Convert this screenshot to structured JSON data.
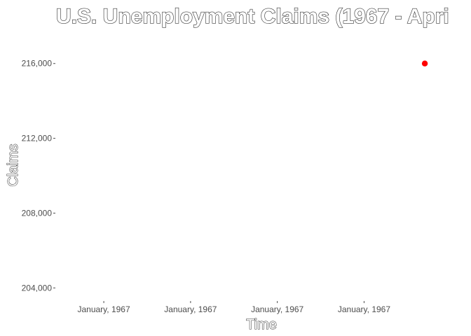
{
  "chart_data": {
    "type": "scatter",
    "title": "U.S. Unemployment Claims (1967 - Apri",
    "xlabel": "Time",
    "ylabel": "Claims",
    "x_tick_labels": [
      "January, 1967",
      "January, 1967",
      "January, 1967",
      "January, 1967"
    ],
    "y_ticks": [
      204000,
      208000,
      212000,
      216000
    ],
    "y_tick_labels": [
      "204,000",
      "208,000",
      "212,000",
      "216,000"
    ],
    "ylim": [
      203300,
      217300
    ],
    "xlim": [
      -0.55,
      4.2
    ],
    "points": [
      {
        "x": 3.7,
        "y": 216000
      }
    ],
    "point_color": "#ff0000",
    "grid": false,
    "legend": "none"
  }
}
